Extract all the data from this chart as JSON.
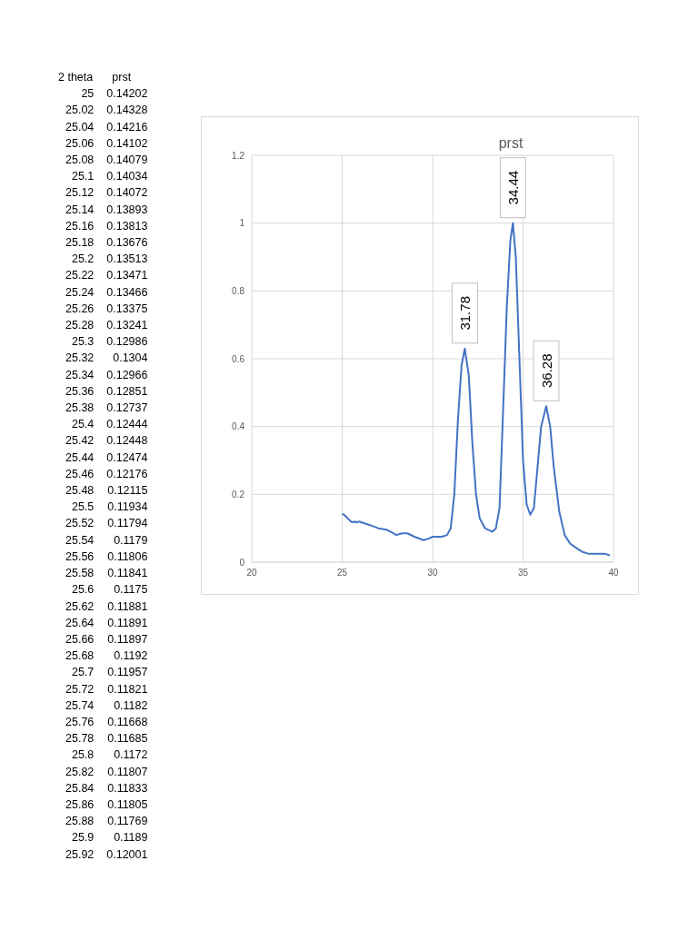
{
  "chart_data": {
    "type": "line",
    "title": "prst",
    "xlim": [
      20,
      40
    ],
    "xticks": [
      20,
      25,
      30,
      35,
      40
    ],
    "ylim": [
      0,
      1.2
    ],
    "yticks": [
      0,
      0.2,
      0.4,
      0.6,
      0.8,
      1,
      1.2
    ],
    "grid": true,
    "marker": "none",
    "line_style": "solid",
    "x": [
      25,
      25.1,
      25.2,
      25.3,
      25.4,
      25.5,
      25.6,
      25.7,
      25.8,
      25.92,
      26.2,
      26.5,
      27,
      27.5,
      28,
      28.3,
      28.6,
      29,
      29.5,
      29.8,
      30,
      30.5,
      30.8,
      31,
      31.2,
      31.4,
      31.6,
      31.78,
      32,
      32.2,
      32.4,
      32.6,
      32.9,
      33.1,
      33.3,
      33.5,
      33.7,
      33.9,
      34.1,
      34.3,
      34.44,
      34.6,
      34.8,
      35,
      35.2,
      35.4,
      35.6,
      35.8,
      36,
      36.28,
      36.5,
      36.7,
      37,
      37.3,
      37.6,
      38,
      38.3,
      38.6,
      39,
      39.5,
      39.8
    ],
    "series": [
      {
        "color": "#4472c4",
        "values": [
          0.142,
          0.14,
          0.135,
          0.13,
          0.124,
          0.119,
          0.118,
          0.12,
          0.117,
          0.12,
          0.115,
          0.11,
          0.1,
          0.095,
          0.08,
          0.085,
          0.085,
          0.075,
          0.065,
          0.07,
          0.075,
          0.075,
          0.08,
          0.1,
          0.2,
          0.42,
          0.58,
          0.63,
          0.55,
          0.35,
          0.2,
          0.13,
          0.1,
          0.095,
          0.09,
          0.1,
          0.16,
          0.45,
          0.75,
          0.95,
          1,
          0.9,
          0.6,
          0.3,
          0.17,
          0.14,
          0.16,
          0.28,
          0.4,
          0.46,
          0.4,
          0.28,
          0.15,
          0.08,
          0.055,
          0.04,
          0.03,
          0.025,
          0.025,
          0.025,
          0.02
        ]
      }
    ],
    "annotations": [
      {
        "text": "31.78",
        "x": 31.78,
        "y": 0.63
      },
      {
        "text": "34.44",
        "x": 34.44,
        "y": 1
      },
      {
        "text": "36.28",
        "x": 36.28,
        "y": 0.46
      },
      "2 theta",
      "prst",
      "25",
      "0.14202",
      "25.02",
      "0.14328",
      "25.04",
      "0.14216",
      "25.06",
      "0.14102",
      "25.08",
      "0.14079",
      "25.1",
      "0.14034",
      "25.12",
      "0.14072",
      "25.14",
      "0.13893",
      "25.16",
      "0.13813",
      "25.18",
      "0.13676",
      "25.2",
      "0.13513",
      "25.22",
      "0.13471",
      "25.24",
      "0.13466",
      "25.26",
      "0.13375",
      "25.28",
      "0.13241",
      "25.3",
      "0.12986",
      "25.32",
      "0.1304",
      "25.34",
      "0.12966",
      "25.36",
      "0.12851",
      "25.38",
      "0.12737",
      "25.4",
      "0.12444",
      "25.42",
      "0.12448",
      "25.44",
      "0.12474",
      "25.46",
      "0.12176",
      "25.48",
      "0.12115",
      "25.5",
      "0.11934",
      "25.52",
      "0.11794",
      "25.54",
      "0.1179",
      "25.56",
      "0.11806",
      "25.58",
      "0.11841",
      "25.6",
      "0.1175",
      "25.62",
      "0.11881",
      "25.64",
      "0.11891",
      "25.66",
      "0.11897",
      "25.68",
      "0.1192",
      "25.7",
      "0.11957",
      "25.72",
      "0.11821",
      "25.74",
      "0.1182",
      "25.76",
      "0.11668",
      "25.78",
      "0.11685",
      "25.8",
      "0.1172",
      "25.82",
      "0.11807",
      "25.84",
      "0.11833",
      "25.86",
      "0.11805",
      "25.88",
      "0.11769",
      "25.9",
      "0.1189",
      "25.92",
      "0.12001"
    ]
  }
}
